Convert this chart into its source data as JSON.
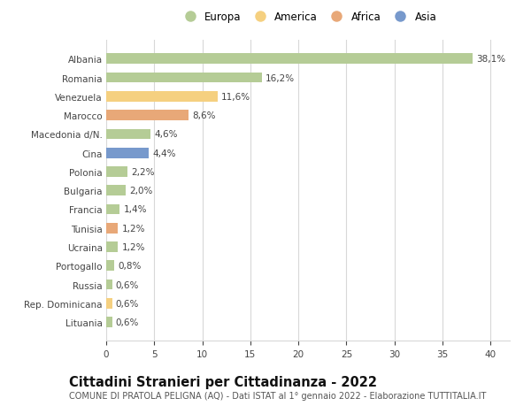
{
  "categories": [
    "Albania",
    "Romania",
    "Venezuela",
    "Marocco",
    "Macedonia d/N.",
    "Cina",
    "Polonia",
    "Bulgaria",
    "Francia",
    "Tunisia",
    "Ucraina",
    "Portogallo",
    "Russia",
    "Rep. Dominicana",
    "Lituania"
  ],
  "values": [
    38.1,
    16.2,
    11.6,
    8.6,
    4.6,
    4.4,
    2.2,
    2.0,
    1.4,
    1.2,
    1.2,
    0.8,
    0.6,
    0.6,
    0.6
  ],
  "labels": [
    "38,1%",
    "16,2%",
    "11,6%",
    "8,6%",
    "4,6%",
    "4,4%",
    "2,2%",
    "2,0%",
    "1,4%",
    "1,2%",
    "1,2%",
    "0,8%",
    "0,6%",
    "0,6%",
    "0,6%"
  ],
  "continents": [
    "Europa",
    "Europa",
    "America",
    "Africa",
    "Europa",
    "Asia",
    "Europa",
    "Europa",
    "Europa",
    "Africa",
    "Europa",
    "Europa",
    "Europa",
    "America",
    "Europa"
  ],
  "colors": {
    "Europa": "#b5cc96",
    "America": "#f5d080",
    "Africa": "#e8a878",
    "Asia": "#7799cc"
  },
  "xlim": [
    0,
    42
  ],
  "xticks": [
    0,
    5,
    10,
    15,
    20,
    25,
    30,
    35,
    40
  ],
  "title": "Cittadini Stranieri per Cittadinanza - 2022",
  "subtitle": "COMUNE DI PRATOLA PELIGNA (AQ) - Dati ISTAT al 1° gennaio 2022 - Elaborazione TUTTITALIA.IT",
  "background_color": "#ffffff",
  "grid_color": "#d8d8d8",
  "bar_height": 0.55,
  "label_fontsize": 7.5,
  "tick_fontsize": 7.5,
  "title_fontsize": 10.5,
  "subtitle_fontsize": 7.0,
  "legend_order": [
    "Europa",
    "America",
    "Africa",
    "Asia"
  ]
}
